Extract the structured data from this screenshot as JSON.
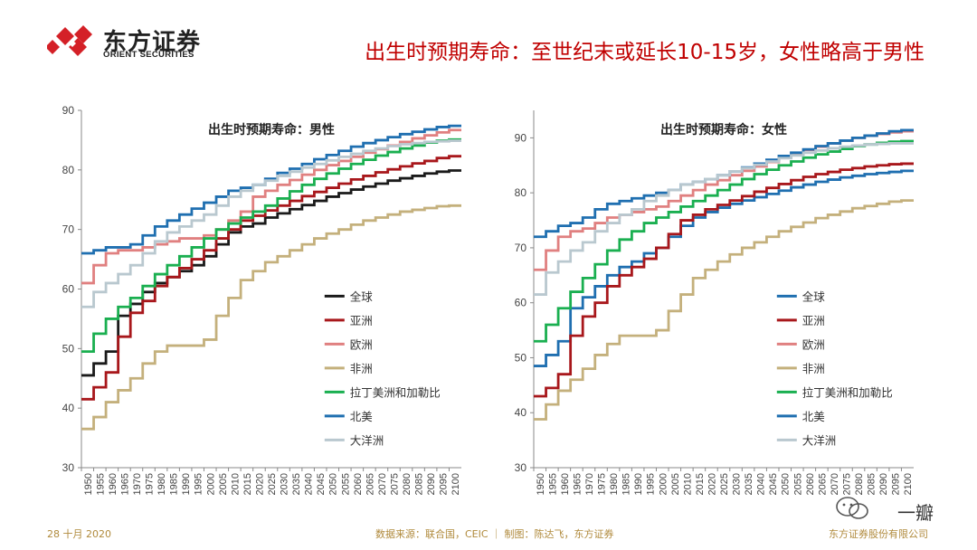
{
  "header": {
    "logo_cn": "东方证券",
    "logo_en": "ORIENT SECURITIES",
    "title": "出生时预期寿命：至世纪末或延长10-15岁，女性略高于男性"
  },
  "footer": {
    "date": "28 十月 2020",
    "source": "数据来源：联合国，CEIC ｜ 制图：陈达飞，东方证券",
    "company": "东方证券股份有限公司"
  },
  "watermark": {
    "text": "一瓣"
  },
  "colors": {
    "title_red": "#c00000",
    "footer_gold": "#b08a3c",
    "logo_red": "#d42027"
  },
  "chart_data": [
    {
      "type": "line",
      "step": true,
      "title": "出生时预期寿命：男性",
      "xlabel": "",
      "ylabel": "",
      "xlim": [
        1950,
        2100
      ],
      "ylim": [
        30,
        90
      ],
      "yticks": [
        30,
        40,
        50,
        60,
        70,
        80,
        90
      ],
      "x": [
        1950,
        1955,
        1960,
        1965,
        1970,
        1975,
        1980,
        1985,
        1990,
        1995,
        2000,
        2005,
        2010,
        2015,
        2020,
        2025,
        2030,
        2035,
        2040,
        2045,
        2050,
        2055,
        2060,
        2065,
        2070,
        2075,
        2080,
        2085,
        2090,
        2095,
        2100
      ],
      "legend_position": "center-right",
      "grid": false,
      "series": [
        {
          "name": "全球",
          "color": "#1a1a1a",
          "values": [
            45.5,
            47.5,
            49.5,
            55.5,
            57.5,
            59.5,
            61.0,
            62.0,
            63.0,
            64.0,
            65.5,
            67.5,
            69.5,
            70.5,
            71.0,
            72.0,
            72.7,
            73.4,
            74.1,
            74.8,
            75.5,
            76.1,
            76.7,
            77.2,
            77.7,
            78.2,
            78.6,
            79.0,
            79.4,
            79.7,
            79.9
          ]
        },
        {
          "name": "亚洲",
          "color": "#a8171b",
          "values": [
            41.5,
            43.5,
            46.0,
            52.0,
            56.0,
            58.0,
            60.5,
            62.0,
            63.5,
            65.0,
            66.5,
            68.5,
            70.0,
            71.5,
            72.3,
            73.2,
            74.0,
            74.8,
            75.6,
            76.3,
            77.0,
            77.7,
            78.4,
            79.0,
            79.6,
            80.1,
            80.6,
            81.1,
            81.5,
            82.0,
            82.3
          ]
        },
        {
          "name": "欧洲",
          "color": "#e08080",
          "values": [
            61.0,
            64.0,
            66.0,
            66.5,
            66.5,
            67.0,
            67.5,
            68.0,
            68.5,
            68.5,
            69.0,
            70.0,
            71.5,
            73.0,
            75.5,
            76.5,
            77.5,
            78.3,
            79.2,
            80.0,
            80.8,
            81.5,
            82.2,
            82.9,
            83.5,
            84.1,
            84.7,
            85.3,
            85.8,
            86.3,
            86.7
          ]
        },
        {
          "name": "非洲",
          "color": "#c4b07c",
          "values": [
            36.5,
            38.5,
            41.0,
            43.0,
            45.0,
            47.5,
            49.5,
            50.5,
            50.5,
            50.5,
            51.5,
            55.5,
            58.5,
            61.5,
            63.0,
            64.5,
            65.5,
            66.5,
            67.5,
            68.5,
            69.3,
            70.0,
            70.8,
            71.5,
            72.0,
            72.5,
            73.0,
            73.3,
            73.6,
            73.9,
            74.0
          ]
        },
        {
          "name": "拉丁美洲和加勒比",
          "color": "#1aaf50",
          "values": [
            49.5,
            52.5,
            55.0,
            57.0,
            58.5,
            60.5,
            62.5,
            64.0,
            65.5,
            67.0,
            68.5,
            70.0,
            71.0,
            72.0,
            73.0,
            74.0,
            75.2,
            76.4,
            77.5,
            78.5,
            79.4,
            80.2,
            81.0,
            81.7,
            82.4,
            83.0,
            83.6,
            84.1,
            84.6,
            84.9,
            85.1
          ]
        },
        {
          "name": "北美",
          "color": "#1f6fb0",
          "values": [
            66.0,
            66.5,
            67.0,
            67.0,
            67.5,
            69.0,
            70.5,
            71.5,
            72.5,
            73.5,
            74.5,
            75.5,
            76.5,
            77.0,
            77.5,
            78.5,
            79.5,
            80.2,
            81.0,
            81.8,
            82.5,
            83.2,
            83.9,
            84.5,
            85.0,
            85.5,
            86.0,
            86.4,
            86.8,
            87.2,
            87.4
          ]
        },
        {
          "name": "大洋洲",
          "color": "#b9c8cf",
          "values": [
            57.0,
            59.5,
            61.0,
            62.5,
            64.0,
            66.0,
            68.0,
            69.5,
            70.5,
            71.5,
            72.5,
            74.0,
            75.5,
            76.5,
            77.5,
            78.2,
            79.0,
            79.7,
            80.4,
            81.0,
            81.6,
            82.2,
            82.7,
            83.2,
            83.6,
            84.0,
            84.3,
            84.5,
            84.7,
            84.8,
            84.9
          ]
        }
      ]
    },
    {
      "type": "line",
      "step": true,
      "title": "出生时预期寿命：女性",
      "xlabel": "",
      "ylabel": "",
      "xlim": [
        1950,
        2100
      ],
      "ylim": [
        30,
        95
      ],
      "yticks": [
        30,
        40,
        50,
        60,
        70,
        80,
        90
      ],
      "x": [
        1950,
        1955,
        1960,
        1965,
        1970,
        1975,
        1980,
        1985,
        1990,
        1995,
        2000,
        2005,
        2010,
        2015,
        2020,
        2025,
        2030,
        2035,
        2040,
        2045,
        2050,
        2055,
        2060,
        2065,
        2070,
        2075,
        2080,
        2085,
        2090,
        2095,
        2100
      ],
      "legend_position": "center-right",
      "grid": false,
      "series": [
        {
          "name": "全球",
          "color": "#1f6fb0",
          "values": [
            48.5,
            50.5,
            53.0,
            59.0,
            61.0,
            63.0,
            65.0,
            66.5,
            67.5,
            69.0,
            70.0,
            72.0,
            74.0,
            75.5,
            76.5,
            77.3,
            78.0,
            78.6,
            79.2,
            79.8,
            80.4,
            81.0,
            81.5,
            82.0,
            82.4,
            82.8,
            83.1,
            83.4,
            83.6,
            83.8,
            84.0
          ]
        },
        {
          "name": "亚洲",
          "color": "#a8171b",
          "values": [
            43.0,
            44.5,
            47.0,
            54.0,
            57.5,
            60.0,
            63.0,
            65.0,
            66.5,
            68.0,
            70.0,
            72.5,
            75.0,
            76.0,
            77.0,
            77.8,
            78.6,
            79.4,
            80.2,
            80.9,
            81.6,
            82.3,
            82.9,
            83.4,
            83.8,
            84.2,
            84.5,
            84.8,
            85.0,
            85.2,
            85.3
          ]
        },
        {
          "name": "欧洲",
          "color": "#e08080",
          "values": [
            66.0,
            69.5,
            72.0,
            73.0,
            73.5,
            74.5,
            75.5,
            76.0,
            76.5,
            77.0,
            77.5,
            78.5,
            79.5,
            80.5,
            81.5,
            82.3,
            83.2,
            84.0,
            84.8,
            85.6,
            86.4,
            87.1,
            87.8,
            88.4,
            89.0,
            89.5,
            90.0,
            90.4,
            90.7,
            91.0,
            91.2
          ]
        },
        {
          "name": "非洲",
          "color": "#c4b07c",
          "values": [
            38.8,
            41.5,
            44.0,
            46.0,
            48.0,
            50.5,
            52.5,
            54.0,
            54.0,
            54.0,
            55.0,
            58.5,
            61.5,
            64.5,
            66.0,
            67.5,
            68.8,
            70.0,
            71.0,
            72.0,
            73.0,
            73.8,
            74.6,
            75.4,
            76.0,
            76.6,
            77.2,
            77.6,
            78.0,
            78.4,
            78.6
          ]
        },
        {
          "name": "拉丁美洲和加勒比",
          "color": "#1aaf50",
          "values": [
            53.0,
            56.0,
            59.0,
            62.0,
            64.5,
            67.0,
            69.5,
            71.5,
            73.0,
            74.5,
            75.5,
            76.5,
            77.5,
            78.5,
            79.5,
            80.5,
            81.5,
            82.5,
            83.4,
            84.2,
            85.0,
            85.7,
            86.4,
            87.0,
            87.5,
            88.0,
            88.5,
            88.8,
            89.1,
            89.3,
            89.4
          ]
        },
        {
          "name": "北美",
          "color": "#1f6fb0",
          "values": [
            72.0,
            73.0,
            74.0,
            74.5,
            75.5,
            77.0,
            78.0,
            78.5,
            79.0,
            79.5,
            80.0,
            80.5,
            81.5,
            82.0,
            82.5,
            83.2,
            83.9,
            84.6,
            85.3,
            86.0,
            86.7,
            87.3,
            87.9,
            88.5,
            89.0,
            89.5,
            90.0,
            90.4,
            90.8,
            91.2,
            91.4
          ]
        },
        {
          "name": "大洋洲",
          "color": "#b9c8cf",
          "values": [
            61.5,
            65.5,
            67.5,
            69.5,
            71.0,
            73.0,
            74.5,
            76.0,
            77.0,
            78.5,
            79.5,
            80.5,
            81.5,
            82.0,
            82.5,
            83.2,
            83.9,
            84.5,
            85.1,
            85.7,
            86.3,
            86.8,
            87.3,
            87.7,
            88.1,
            88.4,
            88.6,
            88.8,
            88.9,
            89.0,
            89.0
          ]
        }
      ]
    }
  ]
}
